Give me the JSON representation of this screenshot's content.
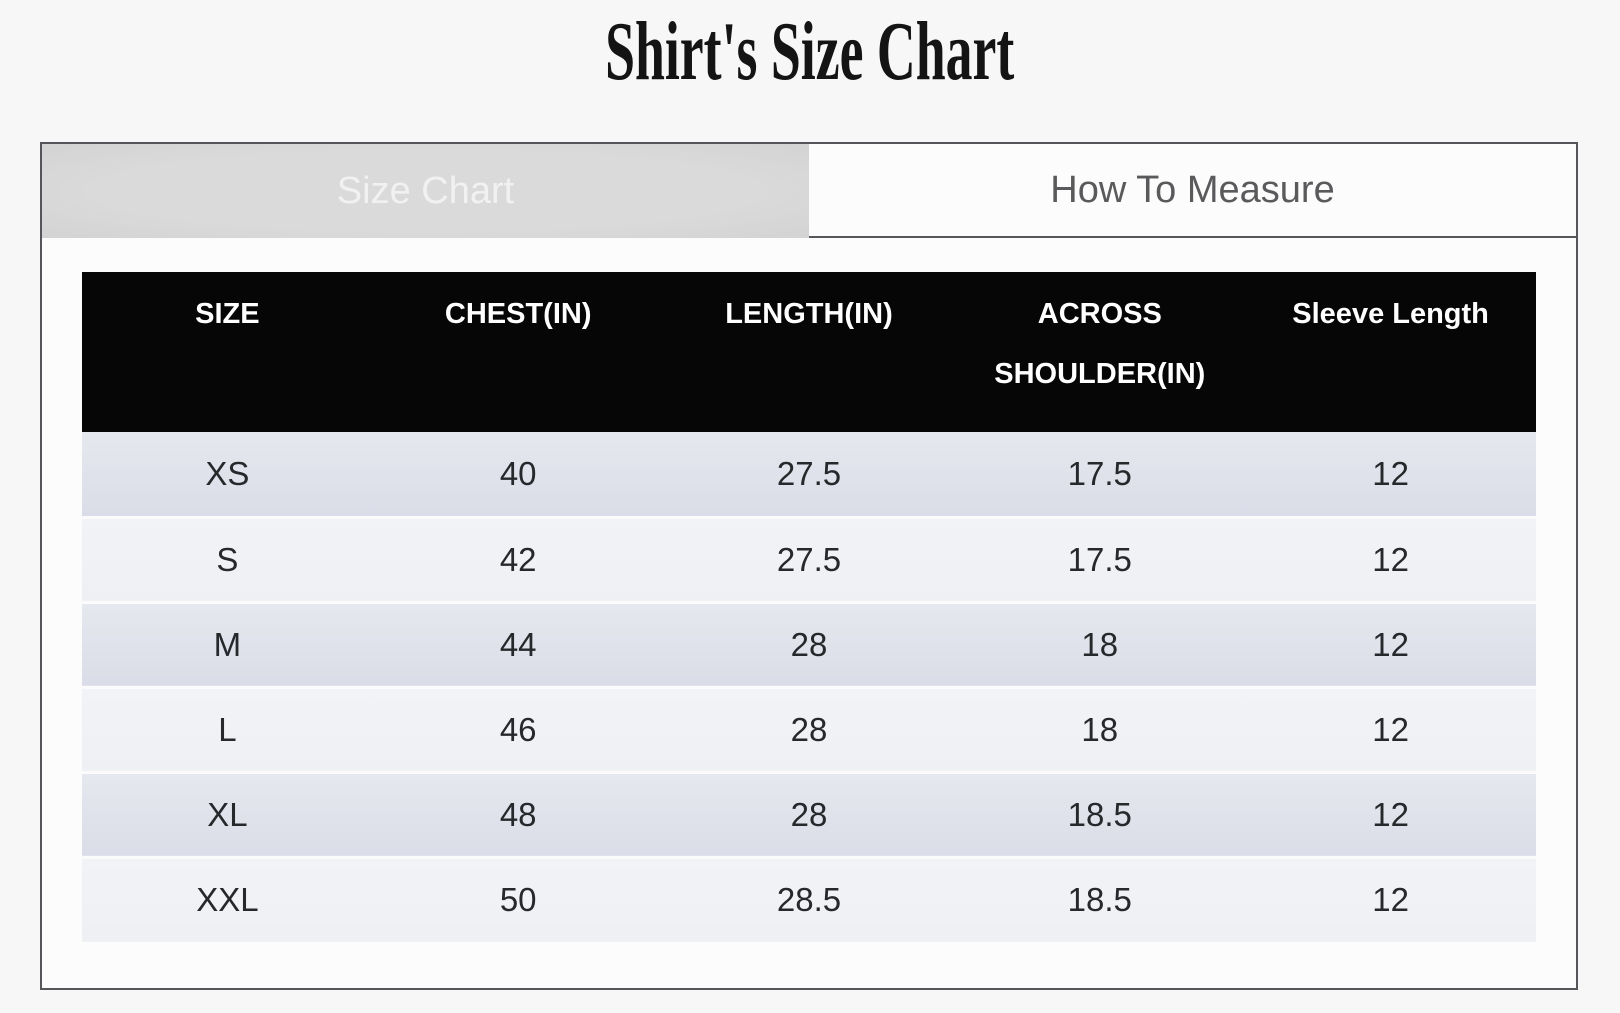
{
  "page": {
    "title": "Shirt's Size Chart"
  },
  "tabs": [
    {
      "label": "Size Chart",
      "active": true
    },
    {
      "label": "How To Measure",
      "active": false
    }
  ],
  "table": {
    "headers": [
      "SIZE",
      "CHEST(IN)",
      "LENGTH(IN)",
      "ACROSS SHOULDER(IN)",
      "Sleeve Length"
    ],
    "rows": [
      [
        "XS",
        "40",
        "27.5",
        "17.5",
        "12"
      ],
      [
        "S",
        "42",
        "27.5",
        "17.5",
        "12"
      ],
      [
        "M",
        "44",
        "28",
        "18",
        "12"
      ],
      [
        "L",
        "46",
        "28",
        "18",
        "12"
      ],
      [
        "XL",
        "48",
        "28",
        "18.5",
        "12"
      ],
      [
        "XXL",
        "50",
        "28.5",
        "18.5",
        "12"
      ]
    ]
  },
  "theme": {
    "header-bg": "#060606",
    "header-text": "#ffffff",
    "tab-active-bg": "#d8d8d8",
    "tab-active-text": "#f1f1f1",
    "tab-inactive-text": "#5a5a5c",
    "border": "#55565a",
    "row-dark-top": "#e6e8ef",
    "row-dark-bottom": "#dadde7",
    "row-light-top": "#f2f3f7",
    "row-light-bottom": "#eef0f4",
    "page-bg": "#f7f7f8",
    "panel-bg": "#fcfcfd",
    "cell-text": "#26282b",
    "title-text": "#141414"
  }
}
